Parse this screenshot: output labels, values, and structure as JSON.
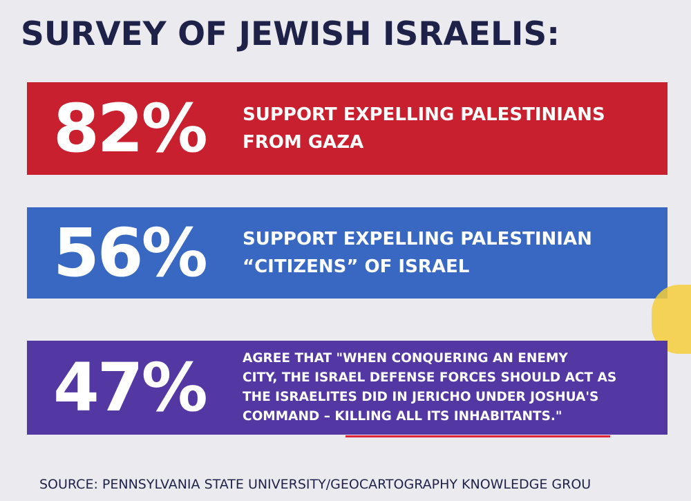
{
  "title": "SURVEY OF JEWISH ISRAELIS:",
  "colors": {
    "red": "#c8202e",
    "blue": "#3868c2",
    "purple": "#5337a3",
    "underline": "#e0243a",
    "highlight": "#f4ce3a"
  },
  "stats": [
    {
      "percent": "82%",
      "text": "SUPPORT EXPELLING PALESTINIANS\nFROM GAZA"
    },
    {
      "percent": "56%",
      "text": "SUPPORT EXPELLING PALESTINIAN\n“CITIZENS” OF ISRAEL"
    },
    {
      "percent": "47%",
      "text": "AGREE THAT \"WHEN CONQUERING AN ENEMY\nCITY, THE ISRAEL DEFENSE FORCES SHOULD ACT AS\nTHE ISRAELITES DID IN JERICHO UNDER JOSHUA'S\nCOMMAND – KILLING ALL ITS INHABITANTS.\""
    }
  ],
  "source": "SOURCE: PENNSYLVANIA STATE UNIVERSITY/GEOCARTOGRAPHY KNOWLEDGE GROU"
}
